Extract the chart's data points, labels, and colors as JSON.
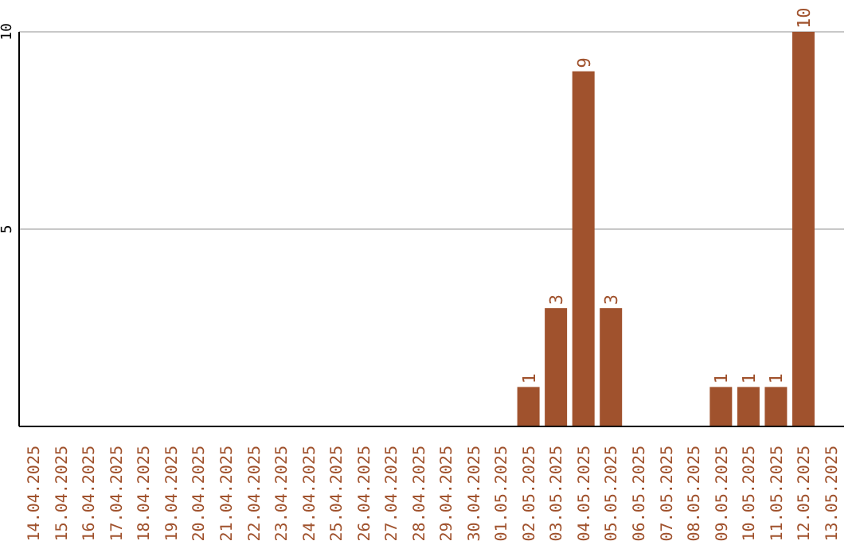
{
  "chart_data": {
    "type": "bar",
    "categories": [
      "14.04.2025",
      "15.04.2025",
      "16.04.2025",
      "17.04.2025",
      "18.04.2025",
      "19.04.2025",
      "20.04.2025",
      "21.04.2025",
      "22.04.2025",
      "23.04.2025",
      "24.04.2025",
      "25.04.2025",
      "26.04.2025",
      "27.04.2025",
      "28.04.2025",
      "29.04.2025",
      "30.04.2025",
      "01.05.2025",
      "02.05.2025",
      "03.05.2025",
      "04.05.2025",
      "05.05.2025",
      "06.05.2025",
      "07.05.2025",
      "08.05.2025",
      "09.05.2025",
      "10.05.2025",
      "11.05.2025",
      "12.05.2025",
      "13.05.2025"
    ],
    "values": [
      0,
      0,
      0,
      0,
      0,
      0,
      0,
      0,
      0,
      0,
      0,
      0,
      0,
      0,
      0,
      0,
      0,
      0,
      1,
      3,
      9,
      3,
      0,
      0,
      0,
      1,
      1,
      1,
      10,
      0
    ],
    "value_labels": [
      null,
      null,
      null,
      null,
      null,
      null,
      null,
      null,
      null,
      null,
      null,
      null,
      null,
      null,
      null,
      null,
      null,
      null,
      "1",
      "3",
      "9",
      "3",
      null,
      null,
      null,
      "1",
      "1",
      "1",
      "10",
      null
    ],
    "color": "#a0522d",
    "ylim": [
      0,
      10
    ],
    "yticks": [
      5,
      10
    ],
    "grid": "y"
  }
}
